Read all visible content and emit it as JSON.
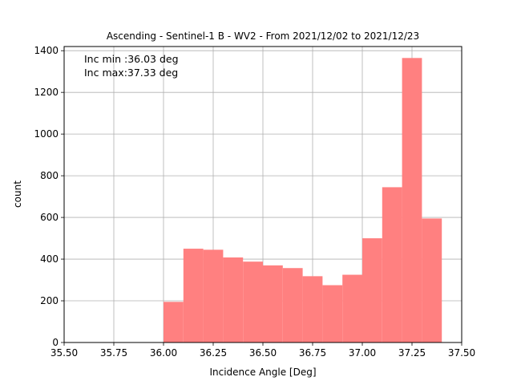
{
  "chart_data": {
    "type": "bar",
    "title": "Ascending - Sentinel-1 B - WV2 - From 2021/12/02 to 2021/12/23",
    "xlabel": "Incidence Angle [Deg]",
    "ylabel": "count",
    "xlim": [
      35.5,
      37.5
    ],
    "ylim": [
      0,
      1420
    ],
    "xticks": [
      "35.50",
      "35.75",
      "36.00",
      "36.25",
      "36.50",
      "36.75",
      "37.00",
      "37.25",
      "37.50"
    ],
    "xtick_values": [
      35.5,
      35.75,
      36.0,
      36.25,
      36.5,
      36.75,
      37.0,
      37.25,
      37.5
    ],
    "yticks": [
      "0",
      "200",
      "400",
      "600",
      "800",
      "1000",
      "1200",
      "1400"
    ],
    "ytick_values": [
      0,
      200,
      400,
      600,
      800,
      1000,
      1200,
      1400
    ],
    "grid": true,
    "bar_color": "#ff8080",
    "bins": [
      {
        "x0": 36.0,
        "x1": 36.1,
        "count": 195
      },
      {
        "x0": 36.1,
        "x1": 36.2,
        "count": 450
      },
      {
        "x0": 36.2,
        "x1": 36.3,
        "count": 445
      },
      {
        "x0": 36.3,
        "x1": 36.4,
        "count": 408
      },
      {
        "x0": 36.4,
        "x1": 36.5,
        "count": 388
      },
      {
        "x0": 36.5,
        "x1": 36.6,
        "count": 370
      },
      {
        "x0": 36.6,
        "x1": 36.7,
        "count": 357
      },
      {
        "x0": 36.7,
        "x1": 36.8,
        "count": 318
      },
      {
        "x0": 36.8,
        "x1": 36.9,
        "count": 275
      },
      {
        "x0": 36.9,
        "x1": 37.0,
        "count": 325
      },
      {
        "x0": 37.0,
        "x1": 37.1,
        "count": 500
      },
      {
        "x0": 37.1,
        "x1": 37.2,
        "count": 745
      },
      {
        "x0": 37.2,
        "x1": 37.3,
        "count": 1365
      },
      {
        "x0": 37.3,
        "x1": 37.4,
        "count": 595
      }
    ],
    "annotations": [
      "Inc min :36.03 deg",
      "Inc max:37.33 deg"
    ]
  }
}
